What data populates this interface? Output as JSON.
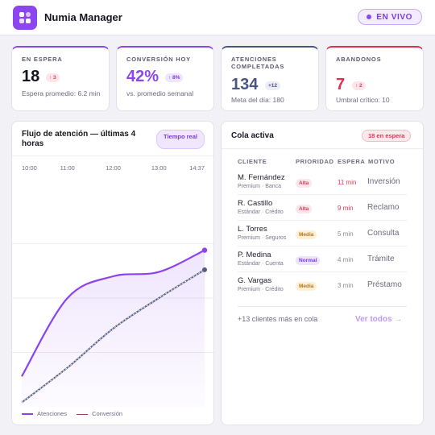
{
  "app": {
    "name": "Numia Manager",
    "live_label": "EN VIVO"
  },
  "kpis": [
    {
      "label": "EN ESPERA",
      "value": "18",
      "delta": "↑ 3",
      "sub": "Espera promedio: 6.2 min"
    },
    {
      "label": "CONVERSIÓN HOY",
      "value": "42%",
      "delta": "↑ 8%",
      "sub": "vs. promedio semanal"
    },
    {
      "label": "ATENCIONES COMPLETADAS",
      "value": "134",
      "delta": "+12",
      "sub": "Meta del día: 180"
    },
    {
      "label": "ABANDONOS",
      "value": "7",
      "delta": "↑ 2",
      "sub": "Umbral crítico: 10"
    }
  ],
  "flow": {
    "title": "Flujo de atención — últimas 4 horas",
    "badge": "Tiempo real"
  },
  "chart_data": {
    "type": "area",
    "x": [
      "10:00",
      "11:00",
      "12:00",
      "13:00",
      "14:37"
    ],
    "series": [
      {
        "name": "Atenciones",
        "color": "#8a43ee",
        "values": [
          0.14,
          0.5,
          0.6,
          0.62,
          0.72
        ]
      },
      {
        "name": "Conversión",
        "color": "#555d82",
        "values": [
          0.02,
          0.18,
          0.36,
          0.5,
          0.63
        ]
      }
    ],
    "ylim": [
      0,
      1
    ],
    "grid": true,
    "legend": "bottom-left"
  },
  "queue": {
    "title": "Cola activa",
    "badge": "18 en espera",
    "columns": [
      "CLIENTE",
      "PRIORIDAD",
      "ESPERA",
      "MOTIVO"
    ],
    "rows": [
      {
        "name": "M. Fernández",
        "meta": "Premium · Banca",
        "priority": "Alta",
        "wait": "11 min",
        "motive": "Inversión"
      },
      {
        "name": "R. Castillo",
        "meta": "Estándar · Crédito",
        "priority": "Alta",
        "wait": "9 min",
        "motive": "Reclamo"
      },
      {
        "name": "L. Torres",
        "meta": "Premium · Seguros",
        "priority": "Media",
        "wait": "5 min",
        "motive": "Consulta"
      },
      {
        "name": "P. Medina",
        "meta": "Estándar · Cuenta",
        "priority": "Normal",
        "wait": "4 min",
        "motive": "Trámite"
      },
      {
        "name": "G. Vargas",
        "meta": "Premium · Crédito",
        "priority": "Media",
        "wait": "3 min",
        "motive": "Préstamo"
      }
    ],
    "more": "+13 clientes más en cola",
    "view_all": "Ver todos →"
  },
  "colors": {
    "accent": "#8b46f0",
    "alert": "#e0304f",
    "navy": "#4a5580",
    "prio_alta": "#d73a57",
    "prio_media": "#b4771a",
    "prio_normal": "#7a3be2"
  }
}
